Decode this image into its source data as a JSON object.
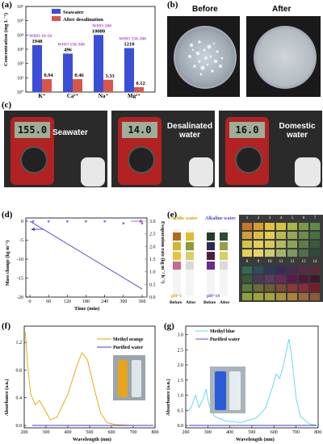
{
  "panels": {
    "a": "(a)",
    "b": "(b)",
    "c": "(c)",
    "d": "(d)",
    "e": "(e)",
    "f": "(f)",
    "g": "(g)"
  },
  "a": {
    "legend": [
      "Seawater",
      "After desalination"
    ],
    "ylabel": "Concentration (mg L⁻¹)",
    "yticks": [
      "10⁰",
      "10¹",
      "10²",
      "10³",
      "10⁴",
      "10⁵",
      "10⁶"
    ],
    "ions": [
      "K⁺",
      "Ca²⁺",
      "Na⁺",
      "Mg²⁺"
    ],
    "who": [
      "WHO 10-50",
      "WHO 150-300",
      "WHO 200",
      "WHO 150-300"
    ],
    "seawater": [
      1948,
      496,
      10080,
      1210
    ],
    "seawater_labels": [
      "1948",
      "496",
      "10080",
      "1210"
    ],
    "desal": [
      0.94,
      0.46,
      3.33,
      0.12
    ],
    "desal_labels": [
      "0.94",
      "0.46",
      "3.33",
      "0.12"
    ],
    "colors": {
      "seawater": "#3b4fd6",
      "desal": "#d9564a",
      "who": "#b04bd8"
    }
  },
  "b": {
    "before": "Before",
    "after": "After"
  },
  "c": {
    "labels": [
      "Seawater",
      "Desalinated water",
      "Domestic water"
    ],
    "readings": [
      "155.0",
      "14.0",
      "16.0"
    ]
  },
  "d": {
    "xlabel": "Time (min)",
    "ylabel": "Mass change (kg m⁻²)",
    "y2label": "Evaporation rate (kg m⁻² h⁻¹)",
    "xticks": [
      "0",
      "60",
      "120",
      "180",
      "240",
      "300",
      "360"
    ],
    "yticks": [
      "0",
      "-5",
      "-10",
      "-15",
      "-20"
    ],
    "y2ticks": [
      "0.0",
      "0.5",
      "1.0",
      "1.5",
      "2.0",
      "2.5",
      "3.0"
    ]
  },
  "e": {
    "acidic": "Acidic water",
    "alkaline": "Alkaline water",
    "ph1": "pH=1",
    "ph14": "pH=14",
    "before1": "Before",
    "after1": "After",
    "before2": "Before",
    "after2": "After",
    "chart_top": [
      "1",
      "2",
      "3",
      "4",
      "5",
      "6",
      "7"
    ],
    "chart_bottom": [
      "8",
      "9",
      "10",
      "11",
      "12",
      "13",
      "14"
    ]
  },
  "f": {
    "xlabel": "Wavelength (nm)",
    "ylabel": "Absorbance (a.u.)",
    "legend": [
      "Methyl orange",
      "Purified water"
    ],
    "xticks": [
      "200",
      "300",
      "400",
      "500",
      "600",
      "700",
      "800"
    ],
    "yticks": [
      "0.0",
      "0.4",
      "0.8",
      "1.2"
    ]
  },
  "g": {
    "xlabel": "Wavelength (nm)",
    "ylabel": "Absorbance (a.u.)",
    "legend": [
      "Methyl blue",
      "Purified water"
    ],
    "xticks": [
      "200",
      "300",
      "400",
      "500",
      "600",
      "700",
      "800"
    ],
    "yticks": [
      "0.0",
      "0.5",
      "1.0",
      "1.5",
      "2.0",
      "2.5",
      "3.0"
    ]
  }
}
